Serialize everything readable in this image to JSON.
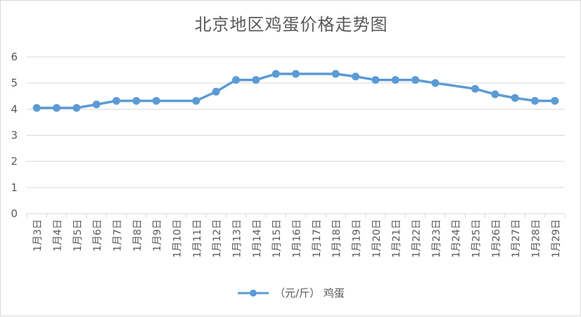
{
  "chart_data": {
    "type": "line",
    "title": "北京地区鸡蛋价格走势图",
    "categories": [
      "1月3日",
      "1月4日",
      "1月5日",
      "1月6日",
      "1月7日",
      "1月8日",
      "1月9日",
      "1月10日",
      "1月11日",
      "1月12日",
      "1月13日",
      "1月14日",
      "1月15日",
      "1月16日",
      "1月17日",
      "1月18日",
      "1月19日",
      "1月20日",
      "1月21日",
      "1月22日",
      "1月23日",
      "1月24日",
      "1月25日",
      "1月26日",
      "1月27日",
      "1月28日",
      "1月29日"
    ],
    "series": [
      {
        "name": "（元/斤） 鸡蛋",
        "color": "#5b9bd5",
        "values": [
          4.05,
          4.05,
          4.05,
          4.18,
          4.32,
          4.32,
          4.32,
          null,
          4.32,
          4.67,
          5.12,
          5.12,
          5.35,
          5.35,
          null,
          5.35,
          5.25,
          5.12,
          5.12,
          5.12,
          5.0,
          null,
          4.78,
          4.57,
          4.43,
          4.32,
          4.32
        ]
      }
    ],
    "ylim": [
      0,
      6
    ],
    "yticks": [
      "0",
      "1",
      "2",
      "3",
      "4",
      "5",
      "6"
    ],
    "grid": true,
    "legend": "bottom",
    "gridColor": "#d9d9d9",
    "textColor": "#595959"
  }
}
